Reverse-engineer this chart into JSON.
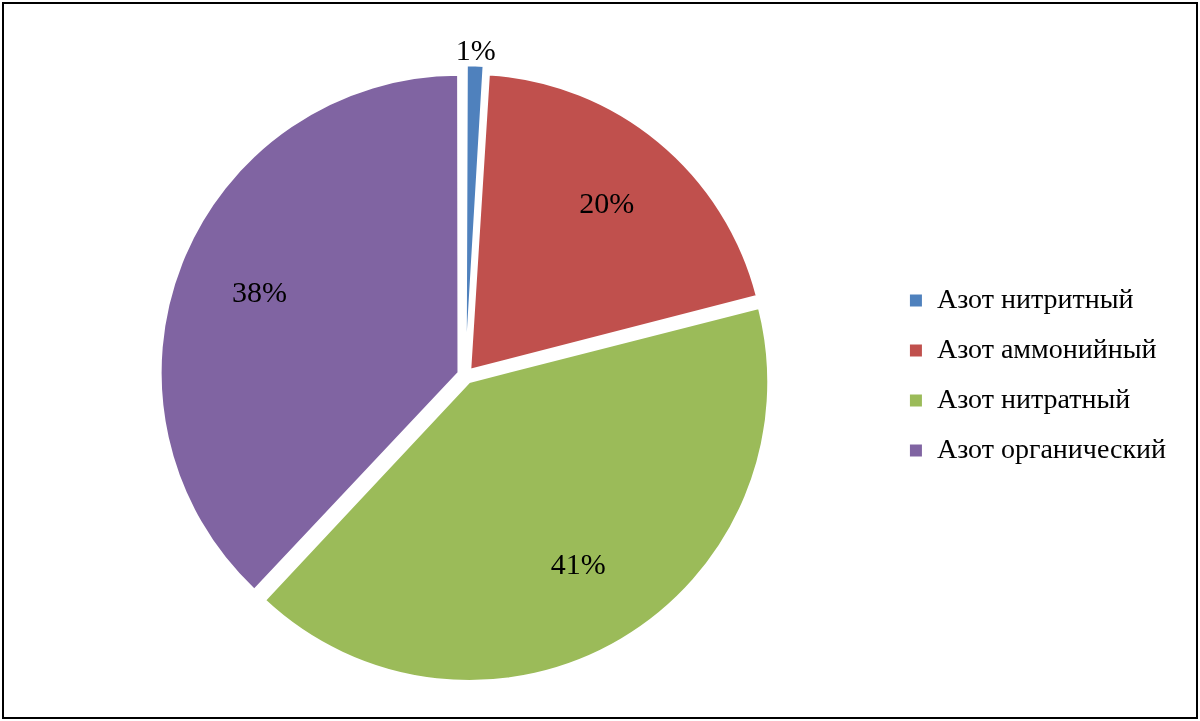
{
  "chart_data": {
    "type": "pie",
    "categories": [
      "Азот нитритный",
      "Азот аммонийный",
      "Азот нитратный",
      "Азот органический"
    ],
    "values": [
      1,
      20,
      41,
      38
    ],
    "colors": [
      "#4f81bd",
      "#c0504d",
      "#9bbb59",
      "#8064a2"
    ],
    "value_labels": [
      "1%",
      "20%",
      "41%",
      "38%"
    ],
    "legend": "right"
  }
}
